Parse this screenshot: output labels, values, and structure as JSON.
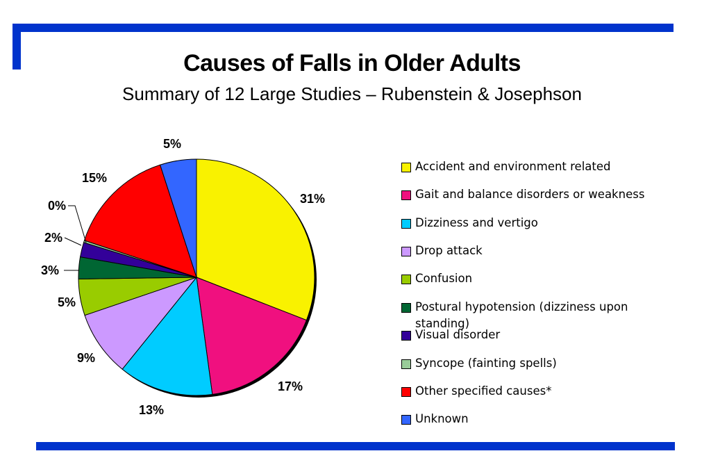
{
  "slide": {
    "title": "Causes of Falls in Older Adults",
    "subtitle": "Summary of 12 Large Studies – Rubenstein & Josephson"
  },
  "chart_data": {
    "type": "pie",
    "title": "Causes of Falls in Older Adults",
    "subtitle": "Summary of 12 Large Studies – Rubenstein & Josephson",
    "legend_position": "right",
    "slices": [
      {
        "label": "Accident and environment related",
        "value": 31,
        "display": "31%",
        "color": "#f9f200"
      },
      {
        "label": "Gait and balance disorders or weakness",
        "value": 17,
        "display": "17%",
        "color": "#f0107f"
      },
      {
        "label": "Dizziness and vertigo",
        "value": 13,
        "display": "13%",
        "color": "#00ccff"
      },
      {
        "label": "Drop attack",
        "value": 9,
        "display": "9%",
        "color": "#cc99ff"
      },
      {
        "label": "Confusion",
        "value": 5,
        "display": "5%",
        "color": "#99cc00"
      },
      {
        "label": "Postural hypotension (dizziness upon standing)",
        "value": 3,
        "display": "3%",
        "color": "#006633"
      },
      {
        "label": "Visual disorder",
        "value": 2,
        "display": "2%",
        "color": "#330099"
      },
      {
        "label": "Syncope (fainting spells)",
        "value": 0.3,
        "display": "0%",
        "color": "#99cc99"
      },
      {
        "label": "Other specified causes*",
        "value": 15,
        "display": "15%",
        "color": "#ff0000"
      },
      {
        "label": "Unknown",
        "value": 5,
        "display": "5%",
        "color": "#3366ff"
      }
    ]
  }
}
